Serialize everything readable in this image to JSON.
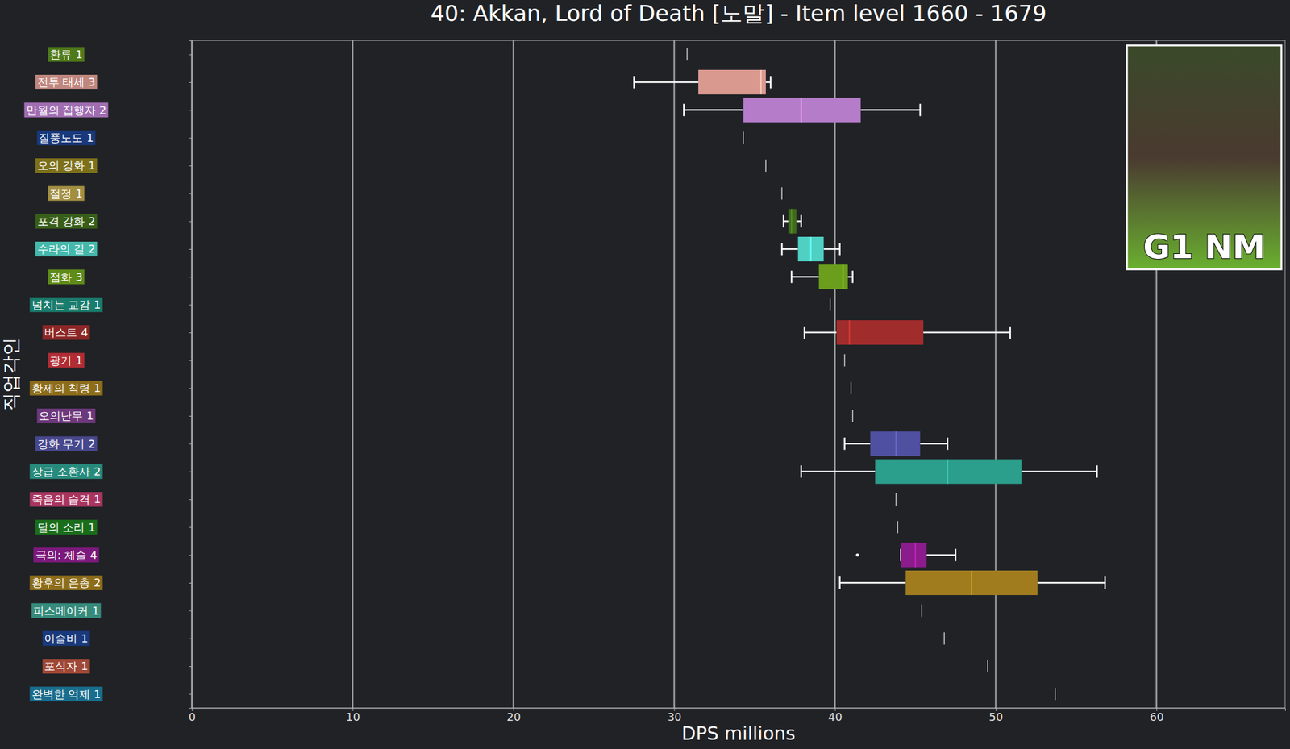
{
  "chart_data": {
    "type": "box",
    "title": "40: Akkan, Lord of Death [노말] - Item level 1660 - 1679",
    "x_label": "DPS millions",
    "y_label": "직업각인",
    "annotation": "G1 NM",
    "orientation": "horizontal",
    "grid": true,
    "xlim": [
      0,
      68
    ],
    "xticks": [
      0,
      10,
      20,
      30,
      40,
      50,
      60
    ],
    "categories": [
      "환류 1",
      "전투 태세 3",
      "만월의 집행자 2",
      "질풍노도 1",
      "오의 강화 1",
      "절정 1",
      "포격 강화 2",
      "수라의 길 2",
      "점화 3",
      "넘치는 교감 1",
      "버스트 4",
      "광기 1",
      "황제의 칙령 1",
      "오의난무 1",
      "강화 무기 2",
      "상급 소환사 2",
      "죽음의 습격 1",
      "달의 소리 1",
      "극의: 체술 4",
      "황후의 은총 2",
      "피스메이커 1",
      "이슬비 1",
      "포식자 1",
      "완벽한 억제 1"
    ],
    "boxes": [
      {
        "value": 30.8
      },
      {
        "min": 27.5,
        "q1": 31.5,
        "median": 35.4,
        "q3": 35.7,
        "max": 36.0
      },
      {
        "min": 30.6,
        "q1": 34.3,
        "median": 37.9,
        "q3": 41.6,
        "max": 45.3
      },
      {
        "value": 34.3
      },
      {
        "value": 35.7
      },
      {
        "value": 36.7
      },
      {
        "min": 36.8,
        "q1": 37.1,
        "median": 37.3,
        "q3": 37.6,
        "max": 37.9
      },
      {
        "min": 36.7,
        "q1": 37.7,
        "median": 38.5,
        "q3": 39.3,
        "max": 40.3
      },
      {
        "min": 37.3,
        "q1": 39.0,
        "median": 40.5,
        "q3": 40.8,
        "max": 41.1
      },
      {
        "value": 39.7
      },
      {
        "min": 38.1,
        "q1": 40.1,
        "median": 40.9,
        "q3": 45.5,
        "max": 50.9
      },
      {
        "value": 40.6
      },
      {
        "value": 41.0
      },
      {
        "value": 41.1
      },
      {
        "min": 40.6,
        "q1": 42.2,
        "median": 43.8,
        "q3": 45.3,
        "max": 47.0
      },
      {
        "min": 37.9,
        "q1": 42.5,
        "median": 47.0,
        "q3": 51.6,
        "max": 56.3
      },
      {
        "value": 43.8
      },
      {
        "value": 43.9
      },
      {
        "min": 44.1,
        "q1": 44.1,
        "median": 45.0,
        "q3": 45.7,
        "max": 47.5,
        "outliers": [
          41.4
        ]
      },
      {
        "min": 40.3,
        "q1": 44.4,
        "median": 48.5,
        "q3": 52.6,
        "max": 56.8
      },
      {
        "value": 45.4
      },
      {
        "value": 46.8
      },
      {
        "value": 49.5
      },
      {
        "value": 53.7
      }
    ],
    "colors": [
      "#5a8a1e",
      "#d9998f",
      "#b57cc9",
      "#1c418c",
      "#8c7f1e",
      "#b8a24c",
      "#3f6a1c",
      "#4fd0c2",
      "#6a9e1c",
      "#1e8c7c",
      "#a02c2c",
      "#c8323c",
      "#a07c1e",
      "#7c408c",
      "#5050a0",
      "#2c9e8c",
      "#c03c6c",
      "#1e7c1e",
      "#8c1c8c",
      "#a07c1e",
      "#3c9e8c",
      "#1c418c",
      "#b4523c",
      "#1c7ca0"
    ]
  }
}
